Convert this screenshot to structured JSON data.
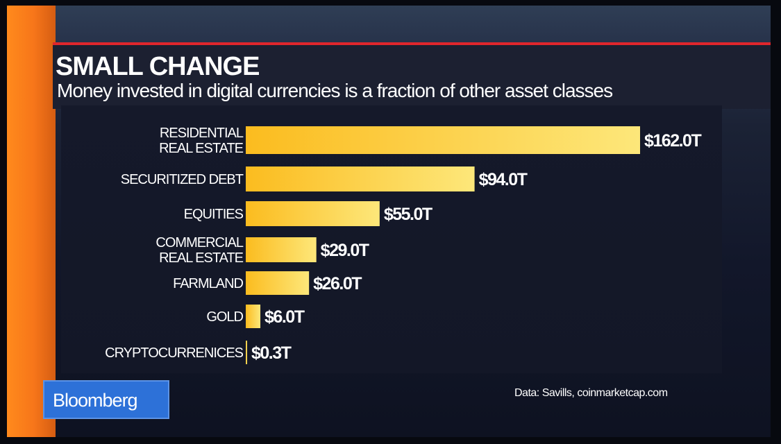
{
  "header": {
    "title": "SMALL CHANGE",
    "subtitle": "Money invested in digital currencies is a fraction of other asset classes"
  },
  "footer": {
    "brand": "Bloomberg",
    "source": "Data: Savills, coinmarketcap.com"
  },
  "colors": {
    "bar_gradient_start": "#fbbc1f",
    "bar_gradient_end": "#fde77a",
    "header_rule": "#e0262c",
    "brand_blue": "#2d71d8"
  },
  "chart_data": {
    "type": "bar",
    "orientation": "horizontal",
    "title": "SMALL CHANGE",
    "subtitle": "Money invested in digital currencies is a fraction of other asset classes",
    "categories": [
      [
        "RESIDENTIAL",
        "REAL ESTATE"
      ],
      [
        "SECURITIZED DEBT"
      ],
      [
        "EQUITIES"
      ],
      [
        "COMMERCIAL",
        "REAL ESTATE"
      ],
      [
        "FARMLAND"
      ],
      [
        "GOLD"
      ],
      [
        "CRYPTOCURRENICES"
      ]
    ],
    "values": [
      162.0,
      94.0,
      55.0,
      29.0,
      26.0,
      6.0,
      0.3
    ],
    "value_labels": [
      "$162.0T",
      "$94.0T",
      "$55.0T",
      "$29.0T",
      "$26.0T",
      "$6.0T",
      "$0.3T"
    ],
    "unit": "trillion USD",
    "xlim": [
      0,
      162
    ],
    "grid": false,
    "legend": "none",
    "source": "Data: Savills, coinmarketcap.com"
  }
}
